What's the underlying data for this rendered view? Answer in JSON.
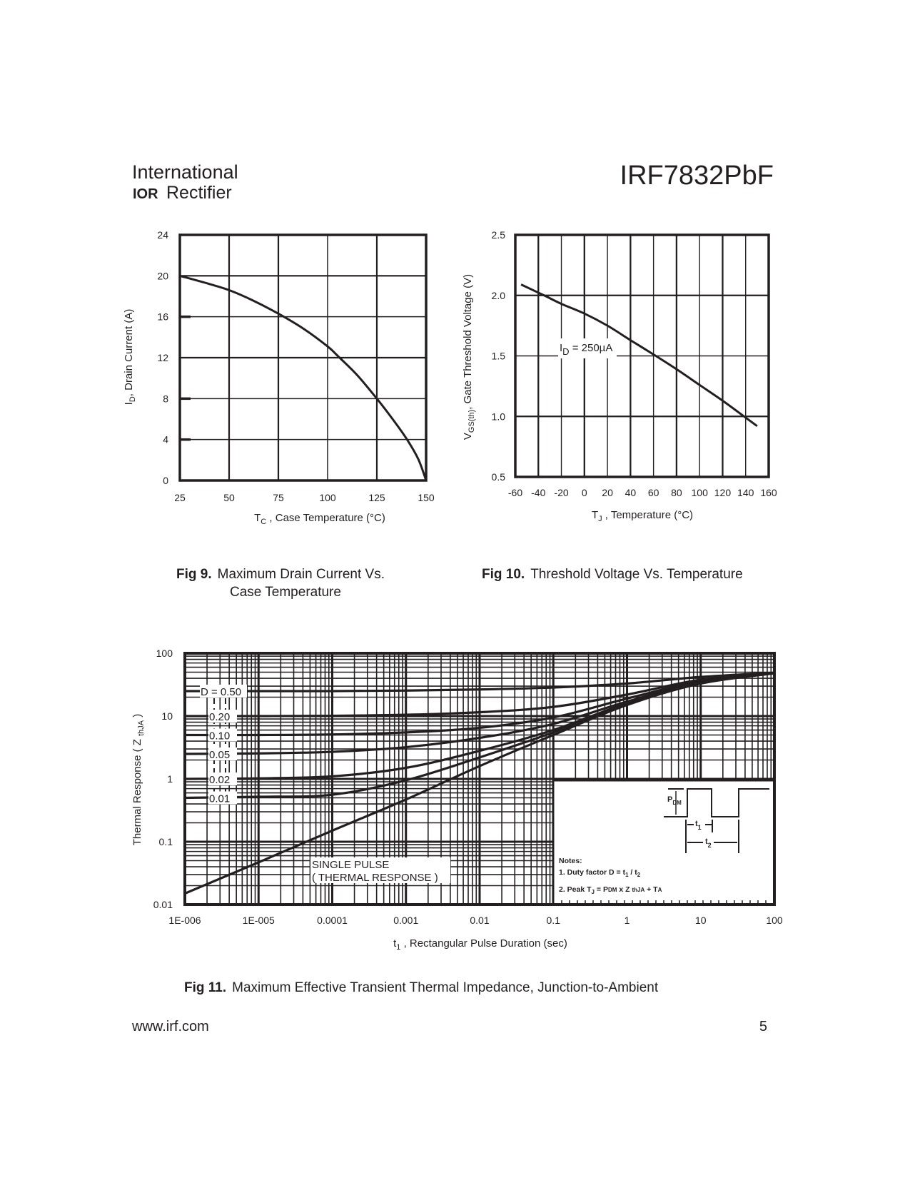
{
  "header": {
    "company_line1": "International",
    "company_logo": "IOR",
    "company_line2": "Rectifier",
    "part_number": "IRF7832PbF"
  },
  "footer": {
    "website": "www.irf.com",
    "page_number": "5"
  },
  "colors": {
    "ink": "#231f20",
    "background": "#ffffff"
  },
  "chart_data": [
    {
      "type": "line",
      "caption_label": "Fig 9.",
      "caption_lines": [
        "Maximum Drain Current Vs.",
        "Case Temperature"
      ],
      "xlabel": {
        "main": "T",
        "sub": "C",
        "rest": " , Case Temperature (°C)"
      },
      "ylabel": {
        "main": "I",
        "sub": "D",
        "rest": ",  Drain Current (A)"
      },
      "xlim": [
        25,
        150
      ],
      "ylim": [
        0,
        24
      ],
      "xticks": [
        25,
        50,
        75,
        100,
        125,
        150
      ],
      "yticks": [
        0,
        4,
        8,
        12,
        16,
        20,
        24
      ],
      "grid": true,
      "x": [
        25,
        40,
        50,
        62,
        75,
        88,
        100,
        105,
        115,
        125,
        133,
        140,
        146,
        150
      ],
      "y": [
        20,
        19.2,
        18.6,
        17.6,
        16.3,
        14.8,
        13.1,
        12.2,
        10.3,
        8.0,
        6.0,
        4.1,
        2.1,
        0
      ]
    },
    {
      "type": "line",
      "caption_label": "Fig 10.",
      "caption_lines": [
        "Threshold Voltage Vs. Temperature"
      ],
      "xlabel": {
        "main": "T",
        "sub": "J",
        "rest": " , Temperature (°C)"
      },
      "ylabel": {
        "main": "V",
        "sub": "GS(th)",
        "rest": ", Gate Threshold Voltage (V)"
      },
      "annotation": {
        "main": "I",
        "sub": "D",
        "rest": " = 250µA"
      },
      "xlim": [
        -60,
        160
      ],
      "ylim": [
        0.5,
        2.5
      ],
      "xticks": [
        -60,
        -40,
        -20,
        0,
        20,
        40,
        60,
        80,
        100,
        120,
        140,
        160
      ],
      "yticks": [
        "0.5",
        "1.0",
        "1.5",
        "2.0",
        "2.5"
      ],
      "grid": true,
      "x": [
        -55,
        -35,
        -20,
        0,
        20,
        40,
        62,
        80,
        100,
        120,
        140,
        150
      ],
      "y": [
        2.09,
        2.0,
        1.93,
        1.85,
        1.75,
        1.63,
        1.5,
        1.39,
        1.26,
        1.13,
        0.99,
        0.92
      ]
    },
    {
      "type": "line",
      "xscale": "log",
      "yscale": "log",
      "caption_label": "Fig 11.",
      "caption_lines": [
        "Maximum Effective Transient Thermal Impedance, Junction-to-Ambient"
      ],
      "xlabel": {
        "main": "t",
        "sub": "1",
        "rest": " , Rectangular Pulse Duration (sec)"
      },
      "ylabel": {
        "main": "Thermal Response ( Z ",
        "sub": "thJA",
        "rest": " )"
      },
      "xlim": [
        1e-06,
        100
      ],
      "ylim": [
        0.01,
        100
      ],
      "xtick_labels": [
        "1E-006",
        "1E-005",
        "0.0001",
        "0.001",
        "0.01",
        "0.1",
        "1",
        "10",
        "100"
      ],
      "ytick_labels": [
        "0.01",
        "0.1",
        "1",
        "10",
        "100"
      ],
      "grid": true,
      "x": [
        1e-06,
        1e-05,
        0.0001,
        0.001,
        0.01,
        0.1,
        1,
        10,
        100
      ],
      "series": [
        {
          "name": "D = 0.50",
          "values": [
            25,
            25,
            25,
            25.5,
            26.5,
            28.5,
            33,
            42,
            49
          ]
        },
        {
          "name": "0.20",
          "values": [
            10,
            10,
            10.1,
            10.5,
            11.5,
            14,
            22,
            38,
            48
          ]
        },
        {
          "name": "0.10",
          "values": [
            5,
            5,
            5.1,
            5.5,
            6.5,
            9.5,
            19,
            36,
            48
          ]
        },
        {
          "name": "0.05",
          "values": [
            2.5,
            2.55,
            2.7,
            3.2,
            4.5,
            7.5,
            17,
            35,
            48
          ]
        },
        {
          "name": "0.02",
          "values": [
            1.0,
            1.02,
            1.1,
            1.5,
            2.8,
            6,
            16,
            34,
            48
          ]
        },
        {
          "name": "0.01",
          "values": [
            0.5,
            0.52,
            0.56,
            0.95,
            2.2,
            5.5,
            15.5,
            33,
            48
          ]
        },
        {
          "name": "SINGLE PULSE",
          "label2": "( THERMAL RESPONSE )",
          "values": [
            0.015,
            0.047,
            0.15,
            0.47,
            1.6,
            5,
            15,
            33,
            48
          ]
        }
      ],
      "inset": {
        "pdm_label": "P",
        "pdm_sub": "DM",
        "t1_label": "t",
        "t1_sub": "1",
        "t2_label": "t",
        "t2_sub": "2",
        "notes_title": "Notes:",
        "note1": "1. Duty factor D =  t",
        "note1_sub1": "1",
        "note1_mid": " / t",
        "note1_sub2": "2",
        "note2": "2. Peak T",
        "note2_sub1": "J",
        "note2_rest": " = P",
        "note2_sub2": "DM",
        "note2_mid": " x Z ",
        "note2_sub3": "thJA",
        "note2_end": " + T",
        "note2_sub4": "A"
      }
    }
  ]
}
